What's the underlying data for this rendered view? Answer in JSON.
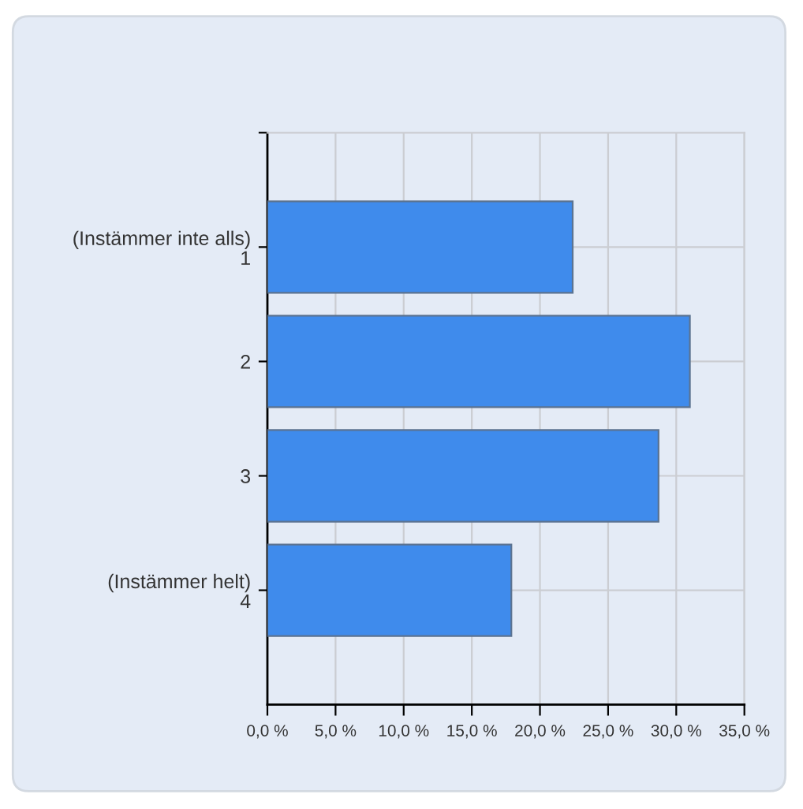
{
  "chart_data": {
    "type": "bar",
    "orientation": "horizontal",
    "categories": [
      "(Instämmer inte alls)\n1",
      "2",
      "3",
      "(Instämmer helt)\n4"
    ],
    "values": [
      22.4,
      31.0,
      28.7,
      17.9
    ],
    "color": "#3f8bec",
    "xlim": [
      0,
      35
    ],
    "xticks": [
      {
        "value": 0,
        "label": "0,0 %"
      },
      {
        "value": 5,
        "label": "5,0 %"
      },
      {
        "value": 10,
        "label": "10,0 %"
      },
      {
        "value": 15,
        "label": "15,0 %"
      },
      {
        "value": 20,
        "label": "20,0 %"
      },
      {
        "value": 25,
        "label": "25,0 %"
      },
      {
        "value": 30,
        "label": "30,0 %"
      },
      {
        "value": 35,
        "label": "35,0 %"
      }
    ],
    "grid": true
  }
}
